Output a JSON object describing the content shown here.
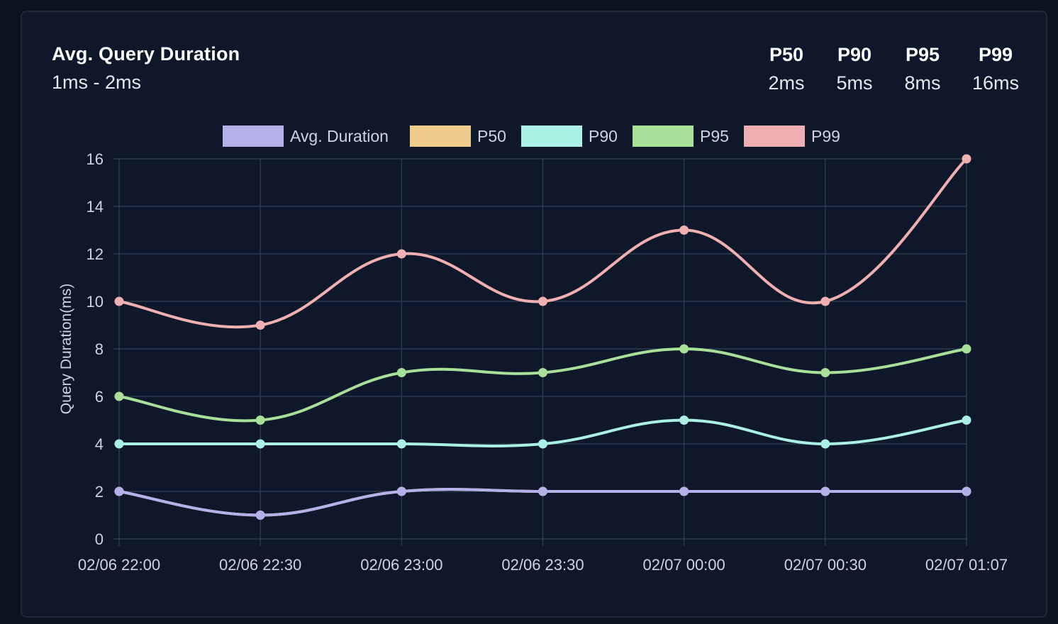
{
  "header": {
    "title": "Avg. Query Duration",
    "range": "1ms - 2ms"
  },
  "stats": [
    {
      "label": "P50",
      "value": "2ms"
    },
    {
      "label": "P90",
      "value": "5ms"
    },
    {
      "label": "P95",
      "value": "8ms"
    },
    {
      "label": "P99",
      "value": "16ms"
    }
  ],
  "colors": {
    "card_bg": "#0f172a",
    "grid": "#334155",
    "avg": "#b4b0ea",
    "p50": "#efcc8b",
    "p90": "#abf0e4",
    "p95": "#a8e09a",
    "p99": "#f0afb0"
  },
  "chart_data": {
    "type": "line",
    "title": "",
    "xlabel": "",
    "ylabel": "Query Duration(ms)",
    "ylim": [
      0,
      16
    ],
    "yticks": [
      0,
      2,
      4,
      6,
      8,
      10,
      12,
      14,
      16
    ],
    "categories": [
      "02/06 22:00",
      "02/06 22:30",
      "02/06 23:00",
      "02/06 23:30",
      "02/07 00:00",
      "02/07 00:30",
      "02/07 01:07"
    ],
    "legend_position": "top-center",
    "grid": true,
    "series": [
      {
        "name": "Avg. Duration",
        "key": "avg",
        "values": [
          2,
          1,
          2,
          2,
          2,
          2,
          2
        ]
      },
      {
        "name": "P50",
        "key": "p50",
        "values": [
          2,
          1,
          2,
          2,
          2,
          2,
          2
        ]
      },
      {
        "name": "P90",
        "key": "p90",
        "values": [
          4,
          4,
          4,
          4,
          5,
          4,
          5
        ]
      },
      {
        "name": "P95",
        "key": "p95",
        "values": [
          6,
          5,
          7,
          7,
          8,
          7,
          8
        ]
      },
      {
        "name": "P99",
        "key": "p99",
        "values": [
          10,
          9,
          12,
          10,
          13,
          10,
          16
        ]
      }
    ]
  }
}
